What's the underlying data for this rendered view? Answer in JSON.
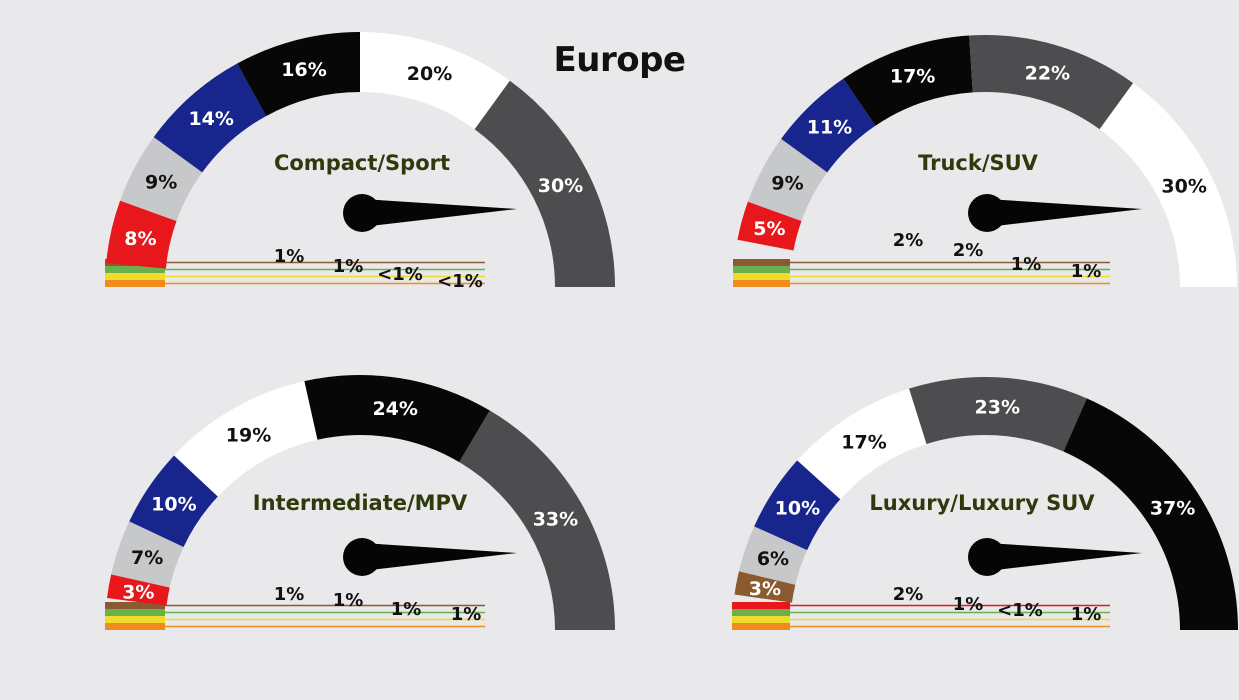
{
  "title": "Europe",
  "colors": {
    "black": "#070707",
    "white": "#ffffff",
    "darkgray": "#4d4d4f",
    "silver": "#c7c8ca",
    "blue": "#17258d",
    "red": "#e7171b",
    "brown": "#8a5a30",
    "green": "#6ab04c",
    "yellow": "#f2dc2a",
    "orange": "#f08c1d"
  },
  "chart_data": [
    {
      "type": "pie",
      "title": "Compact/Sport",
      "segments": [
        {
          "color": "red",
          "value": 8,
          "label": "8%"
        },
        {
          "color": "silver",
          "value": 9,
          "label": "9%"
        },
        {
          "color": "blue",
          "value": 14,
          "label": "14%"
        },
        {
          "color": "black",
          "value": 16,
          "label": "16%"
        },
        {
          "color": "white",
          "value": 20,
          "label": "20%"
        },
        {
          "color": "darkgray",
          "value": 30,
          "label": "30%"
        }
      ],
      "small": [
        {
          "color": "brown",
          "value": 1,
          "label": "1%"
        },
        {
          "color": "green",
          "value": 1,
          "label": "1%"
        },
        {
          "color": "yellow",
          "value": 0.5,
          "label": "<1%"
        },
        {
          "color": "orange",
          "value": 0.5,
          "label": "<1%"
        }
      ]
    },
    {
      "type": "pie",
      "title": "Truck/SUV",
      "segments": [
        {
          "color": "red",
          "value": 5,
          "label": "5%"
        },
        {
          "color": "silver",
          "value": 9,
          "label": "9%"
        },
        {
          "color": "blue",
          "value": 11,
          "label": "11%"
        },
        {
          "color": "black",
          "value": 17,
          "label": "17%"
        },
        {
          "color": "darkgray",
          "value": 22,
          "label": "22%"
        },
        {
          "color": "white",
          "value": 30,
          "label": "30%"
        }
      ],
      "small": [
        {
          "color": "brown",
          "value": 2,
          "label": "2%"
        },
        {
          "color": "green",
          "value": 2,
          "label": "2%"
        },
        {
          "color": "yellow",
          "value": 1,
          "label": "1%"
        },
        {
          "color": "orange",
          "value": 1,
          "label": "1%"
        }
      ]
    },
    {
      "type": "pie",
      "title": "Intermediate/MPV",
      "segments": [
        {
          "color": "red",
          "value": 3,
          "label": "3%"
        },
        {
          "color": "silver",
          "value": 7,
          "label": "7%"
        },
        {
          "color": "blue",
          "value": 10,
          "label": "10%"
        },
        {
          "color": "white",
          "value": 19,
          "label": "19%"
        },
        {
          "color": "black",
          "value": 24,
          "label": "24%"
        },
        {
          "color": "darkgray",
          "value": 33,
          "label": "33%"
        }
      ],
      "small": [
        {
          "color": "brown",
          "value": 1,
          "label": "1%"
        },
        {
          "color": "green",
          "value": 1,
          "label": "1%"
        },
        {
          "color": "yellow",
          "value": 1,
          "label": "1%"
        },
        {
          "color": "orange",
          "value": 1,
          "label": "1%"
        }
      ]
    },
    {
      "type": "pie",
      "title": "Luxury/Luxury SUV",
      "segments": [
        {
          "color": "brown",
          "value": 3,
          "label": "3%"
        },
        {
          "color": "silver",
          "value": 6,
          "label": "6%"
        },
        {
          "color": "blue",
          "value": 10,
          "label": "10%"
        },
        {
          "color": "white",
          "value": 17,
          "label": "17%"
        },
        {
          "color": "darkgray",
          "value": 23,
          "label": "23%"
        },
        {
          "color": "black",
          "value": 37,
          "label": "37%"
        }
      ],
      "small": [
        {
          "color": "red",
          "value": 2,
          "label": "2%"
        },
        {
          "color": "green",
          "value": 1,
          "label": "1%"
        },
        {
          "color": "yellow",
          "value": 0.5,
          "label": "<1%"
        },
        {
          "color": "orange",
          "value": 1,
          "label": "1%"
        }
      ]
    }
  ]
}
